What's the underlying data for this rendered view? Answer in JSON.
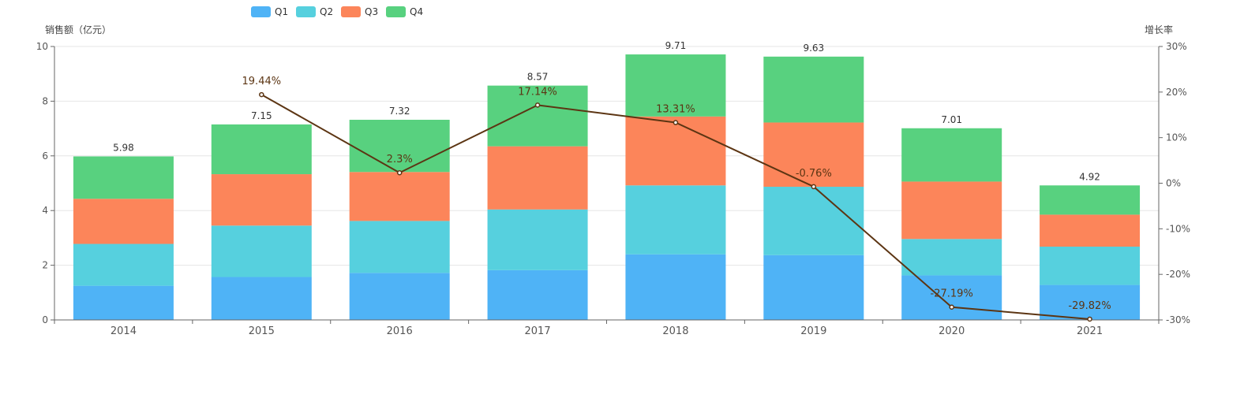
{
  "chart_data": {
    "type": "bar",
    "stacked": true,
    "categories": [
      "2014",
      "2015",
      "2016",
      "2017",
      "2018",
      "2019",
      "2020",
      "2021"
    ],
    "series": [
      {
        "name": "Q1",
        "color": "#4fb3f6",
        "values": [
          1.25,
          1.57,
          1.72,
          1.82,
          2.4,
          2.37,
          1.63,
          1.28
        ]
      },
      {
        "name": "Q2",
        "color": "#56d0de",
        "values": [
          1.53,
          1.88,
          1.9,
          2.22,
          2.52,
          2.5,
          1.33,
          1.4
        ]
      },
      {
        "name": "Q3",
        "color": "#fc855a",
        "values": [
          1.65,
          1.88,
          1.79,
          2.31,
          2.52,
          2.35,
          2.1,
          1.17
        ]
      },
      {
        "name": "Q4",
        "color": "#58d17f",
        "values": [
          1.55,
          1.82,
          1.91,
          2.22,
          2.27,
          2.41,
          1.95,
          1.07
        ]
      }
    ],
    "totals": [
      "5.98",
      "7.15",
      "7.32",
      "8.57",
      "9.71",
      "9.63",
      "7.01",
      "4.92"
    ],
    "growth_rate": {
      "name": "增长率",
      "color": "#5c3513",
      "values": [
        null,
        19.44,
        2.3,
        17.14,
        13.31,
        -0.76,
        -27.19,
        -29.82
      ],
      "labels": [
        "",
        "19.44%",
        "2.3%",
        "17.14%",
        "13.31%",
        "-0.76%",
        "-27.19%",
        "-29.82%"
      ]
    },
    "left_axis": {
      "title": "销售额（亿元）",
      "ylim": [
        0,
        10
      ],
      "ticks": [
        "0",
        "2",
        "4",
        "6",
        "8",
        "10"
      ]
    },
    "right_axis": {
      "title": "增长率",
      "ylim": [
        -30,
        30
      ],
      "ticks": [
        "-30%",
        "-20%",
        "-10%",
        "0%",
        "10%",
        "20%",
        "30%"
      ]
    },
    "legend": {
      "position": "top-left",
      "items": [
        "Q1",
        "Q2",
        "Q3",
        "Q4"
      ]
    },
    "grid": true
  }
}
